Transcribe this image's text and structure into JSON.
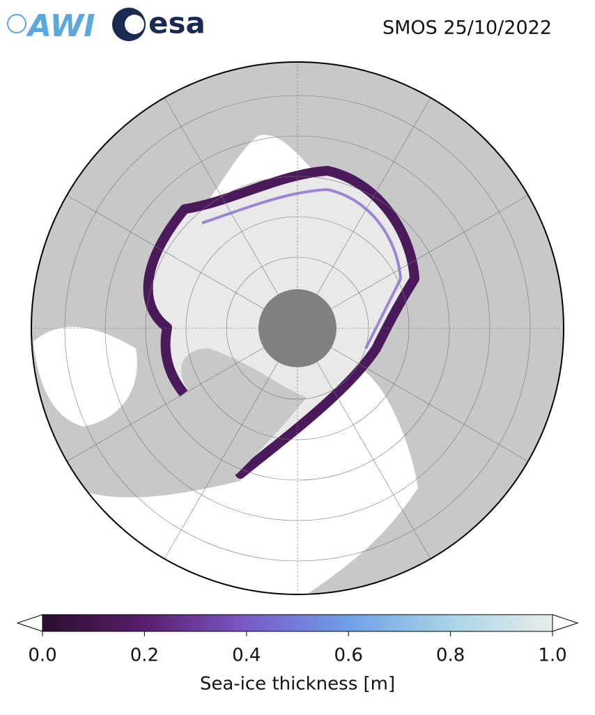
{
  "header": {
    "logos": [
      "AWI",
      "esa"
    ],
    "title": "SMOS 25/10/2022"
  },
  "colorbar": {
    "label": "Sea-ice thickness [m]",
    "lim": [
      0,
      1
    ],
    "ticks": [
      {
        "value": 0,
        "label": "0.0"
      },
      {
        "value": 0.2,
        "label": "0.2"
      },
      {
        "value": 0.4,
        "label": "0.4"
      },
      {
        "value": 0.6,
        "label": "0.6"
      },
      {
        "value": 0.8,
        "label": "0.8"
      },
      {
        "value": 1,
        "label": "1.0"
      }
    ],
    "colors": [
      "#2a0f2f",
      "#5a1d6b",
      "#7a5ac8",
      "#6fa0e8",
      "#a9d4e6",
      "#e6eeea"
    ]
  }
}
